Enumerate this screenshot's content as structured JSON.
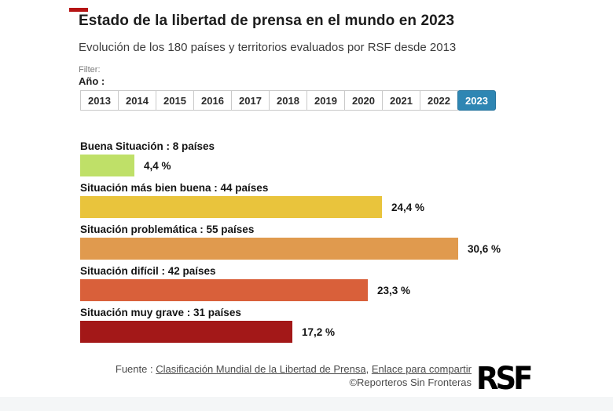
{
  "header": {
    "title": "Estado de la libertad de prensa en el mundo en 2023",
    "subtitle": "Evolución de los 180 países y territorios evaluados por RSF desde 2013",
    "filter_label": "Filter:",
    "year_filter_label": "Año :"
  },
  "years": {
    "options": [
      "2013",
      "2014",
      "2015",
      "2016",
      "2017",
      "2018",
      "2019",
      "2020",
      "2021",
      "2022",
      "2023"
    ],
    "selected": "2023",
    "selected_bg_color": "#2e86b3",
    "selected_border_color": "#26759e"
  },
  "chart_data": {
    "type": "bar",
    "orientation": "horizontal",
    "title": "Estado de la libertad de prensa en el mundo en 2023",
    "categories": [
      "Buena Situación : 8 países",
      "Situación más bien buena : 44 países",
      "Situación problemática : 55 países",
      "Situación difícil : 42 países",
      "Situación muy grave : 31 países"
    ],
    "values": [
      4.4,
      24.4,
      30.6,
      23.3,
      17.2
    ],
    "value_labels": [
      "4,4 %",
      "24,4 %",
      "30,6 %",
      "23,3 %",
      "17,2 %"
    ],
    "countries": [
      8,
      44,
      55,
      42,
      31
    ],
    "total_countries": 180,
    "colors": [
      "#bfe068",
      "#e9c43c",
      "#e09a4e",
      "#d9603a",
      "#a31818"
    ],
    "xlim": [
      0,
      32
    ],
    "grid": false,
    "legend": false
  },
  "footer": {
    "source_prefix": "Fuente : ",
    "source_link_ranking": "Clasificación Mundial de la Libertad de Prensa",
    "separator": ", ",
    "source_link_share": "Enlace para compartir",
    "copyright": "©Reporteros Sin Fronteras",
    "logo_text": "RSF"
  }
}
